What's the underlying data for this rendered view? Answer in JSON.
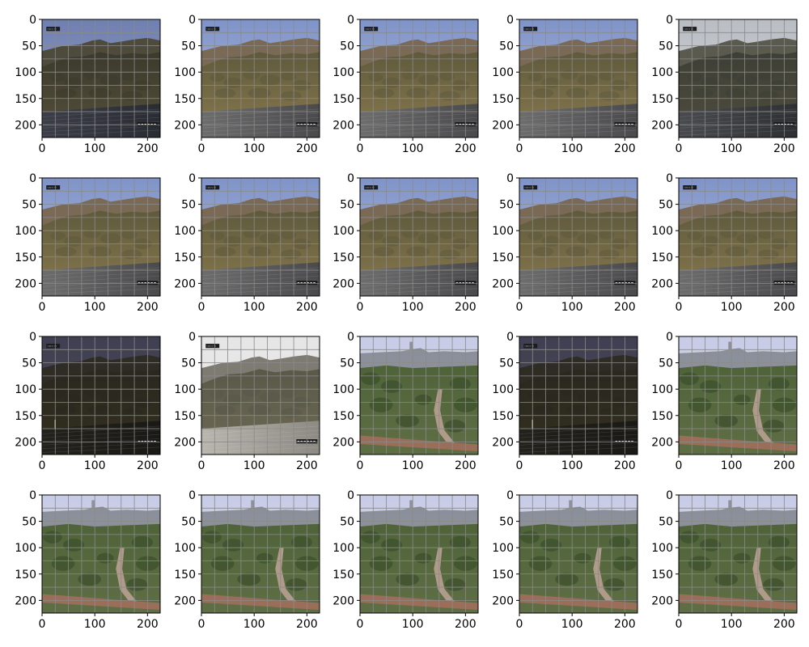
{
  "chart_data": {
    "type": "image-grid",
    "rows": 4,
    "cols": 5,
    "image_size": [
      224,
      224
    ],
    "xlim": [
      0,
      224
    ],
    "ylim": [
      224,
      0
    ],
    "xticks": [
      0,
      100,
      200
    ],
    "yticks": [
      0,
      50,
      100,
      150,
      200
    ],
    "xtick_labels": [
      "0",
      "100",
      "200"
    ],
    "ytick_labels": [
      "0",
      "50",
      "100",
      "150",
      "200"
    ],
    "grid": true,
    "grid_color": "#8a8a8a",
    "camera_label": "Camera 01",
    "scenes": {
      "mountain": {
        "sky": [
          "#7f93c9",
          "#b7c3dc"
        ],
        "ridge": "#7a6a55",
        "slope": [
          "#5f5a3c",
          "#8a7a4f"
        ],
        "lot": [
          "#6d6d6e",
          "#4a4a4c"
        ]
      },
      "mountain_dusk": {
        "sky": [
          "#6f7fb0",
          "#9aa7c8"
        ],
        "ridge": "#4e4a3c",
        "slope": [
          "#3c3a2c",
          "#55503a"
        ],
        "lot": [
          "#3c3e48",
          "#2a2c34"
        ]
      },
      "mountain_haze": {
        "sky": [
          "#b9bdc4",
          "#d5d6d8"
        ],
        "ridge": "#5a5a4e",
        "slope": [
          "#3e3f35",
          "#4f4d3e"
        ],
        "lot": [
          "#4a4b4e",
          "#2e3033"
        ]
      },
      "mountain_night": {
        "sky": [
          "#3f3f52",
          "#4d4c56"
        ],
        "ridge": "#2e2c24",
        "slope": [
          "#2a281f",
          "#33301f"
        ],
        "lot": [
          "#23221c",
          "#1a1915"
        ]
      },
      "mountain_white": {
        "sky": [
          "#e6e6e6",
          "#ececec"
        ],
        "ridge": "#7e7c72",
        "slope": [
          "#5a5848",
          "#6d6a55"
        ],
        "lot": [
          "#b8b6ae",
          "#8c8a82"
        ]
      },
      "valley": {
        "sky": [
          "#c7cbe6",
          "#dde0ef"
        ],
        "ridge": "#7b7f86",
        "slope": [
          "#4f6339",
          "#5f6e45"
        ],
        "lot": [
          "#8a7a5e",
          "#6d5c46"
        ]
      }
    },
    "panels": [
      {
        "scene": "mountain_dusk",
        "stamp": true
      },
      {
        "scene": "mountain",
        "stamp": true
      },
      {
        "scene": "mountain",
        "stamp": true
      },
      {
        "scene": "mountain",
        "stamp": true
      },
      {
        "scene": "mountain_haze",
        "stamp": true
      },
      {
        "scene": "mountain",
        "stamp": true
      },
      {
        "scene": "mountain",
        "stamp": true
      },
      {
        "scene": "mountain",
        "stamp": true
      },
      {
        "scene": "mountain",
        "stamp": true
      },
      {
        "scene": "mountain",
        "stamp": true
      },
      {
        "scene": "mountain_night",
        "stamp": true
      },
      {
        "scene": "mountain_white",
        "stamp": true
      },
      {
        "scene": "valley",
        "stamp": false
      },
      {
        "scene": "mountain_night",
        "stamp": true
      },
      {
        "scene": "valley",
        "stamp": false
      },
      {
        "scene": "valley",
        "stamp": false
      },
      {
        "scene": "valley",
        "stamp": false
      },
      {
        "scene": "valley",
        "stamp": false
      },
      {
        "scene": "valley",
        "stamp": false
      },
      {
        "scene": "valley",
        "stamp": false
      }
    ]
  }
}
